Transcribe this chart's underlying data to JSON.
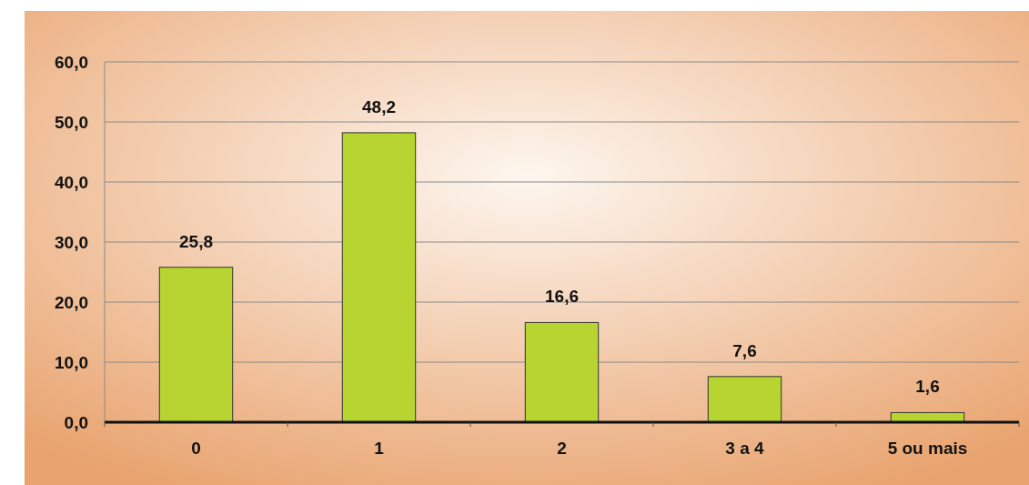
{
  "chart_data": {
    "type": "bar",
    "categories": [
      "0",
      "1",
      "2",
      "3 a 4",
      "5 ou mais"
    ],
    "values": [
      25.8,
      48.2,
      16.6,
      7.6,
      1.6
    ],
    "value_labels": [
      "25,8",
      "48,2",
      "16,6",
      "7,6",
      "1,6"
    ],
    "color": "#b8d430",
    "ylim": [
      0,
      60
    ],
    "yticks": [
      {
        "value": 0,
        "label": "0,0"
      },
      {
        "value": 10,
        "label": "10,0"
      },
      {
        "value": 20,
        "label": "20,0"
      },
      {
        "value": 30,
        "label": "30,0"
      },
      {
        "value": 40,
        "label": "40,0"
      },
      {
        "value": 50,
        "label": "50,0"
      },
      {
        "value": 60,
        "label": "60,0"
      }
    ],
    "grid": "y"
  }
}
